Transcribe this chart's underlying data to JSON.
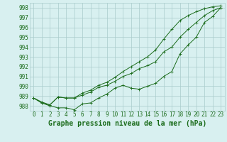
{
  "xlabel": "Graphe pression niveau de la mer (hPa)",
  "x": [
    0,
    1,
    2,
    3,
    4,
    5,
    6,
    7,
    8,
    9,
    10,
    11,
    12,
    13,
    14,
    15,
    16,
    17,
    18,
    19,
    20,
    21,
    22,
    23
  ],
  "line1": [
    988.8,
    988.3,
    988.0,
    987.8,
    987.8,
    987.6,
    988.2,
    988.3,
    988.8,
    989.2,
    989.8,
    990.1,
    989.8,
    989.7,
    990.0,
    990.3,
    991.0,
    991.5,
    993.3,
    994.2,
    995.0,
    996.5,
    997.1,
    998.0
  ],
  "line2": [
    988.8,
    988.3,
    988.1,
    988.9,
    988.8,
    988.8,
    989.1,
    989.4,
    989.9,
    990.1,
    990.5,
    991.0,
    991.3,
    991.8,
    992.1,
    992.5,
    993.5,
    994.0,
    995.0,
    995.8,
    996.5,
    997.2,
    997.7,
    998.0
  ],
  "line3": [
    988.8,
    988.4,
    988.1,
    988.9,
    988.8,
    988.8,
    989.3,
    989.6,
    990.1,
    990.4,
    990.9,
    991.5,
    992.0,
    992.5,
    993.0,
    993.7,
    994.8,
    995.8,
    996.7,
    997.2,
    997.6,
    997.9,
    998.1,
    998.2
  ],
  "line_color": "#1a6b1a",
  "marker": "P",
  "marker_size": 2.0,
  "marker_size_small": 1.5,
  "bg_color": "#d8f0f0",
  "grid_color": "#aacccc",
  "ylim": [
    987.5,
    998.5
  ],
  "yticks": [
    988,
    989,
    990,
    991,
    992,
    993,
    994,
    995,
    996,
    997,
    998
  ],
  "xticks": [
    0,
    1,
    2,
    3,
    4,
    5,
    6,
    7,
    8,
    9,
    10,
    11,
    12,
    13,
    14,
    15,
    16,
    17,
    18,
    19,
    20,
    21,
    22,
    23
  ],
  "tick_fontsize": 5.5,
  "xlabel_fontsize": 7.0,
  "lw": 0.7
}
